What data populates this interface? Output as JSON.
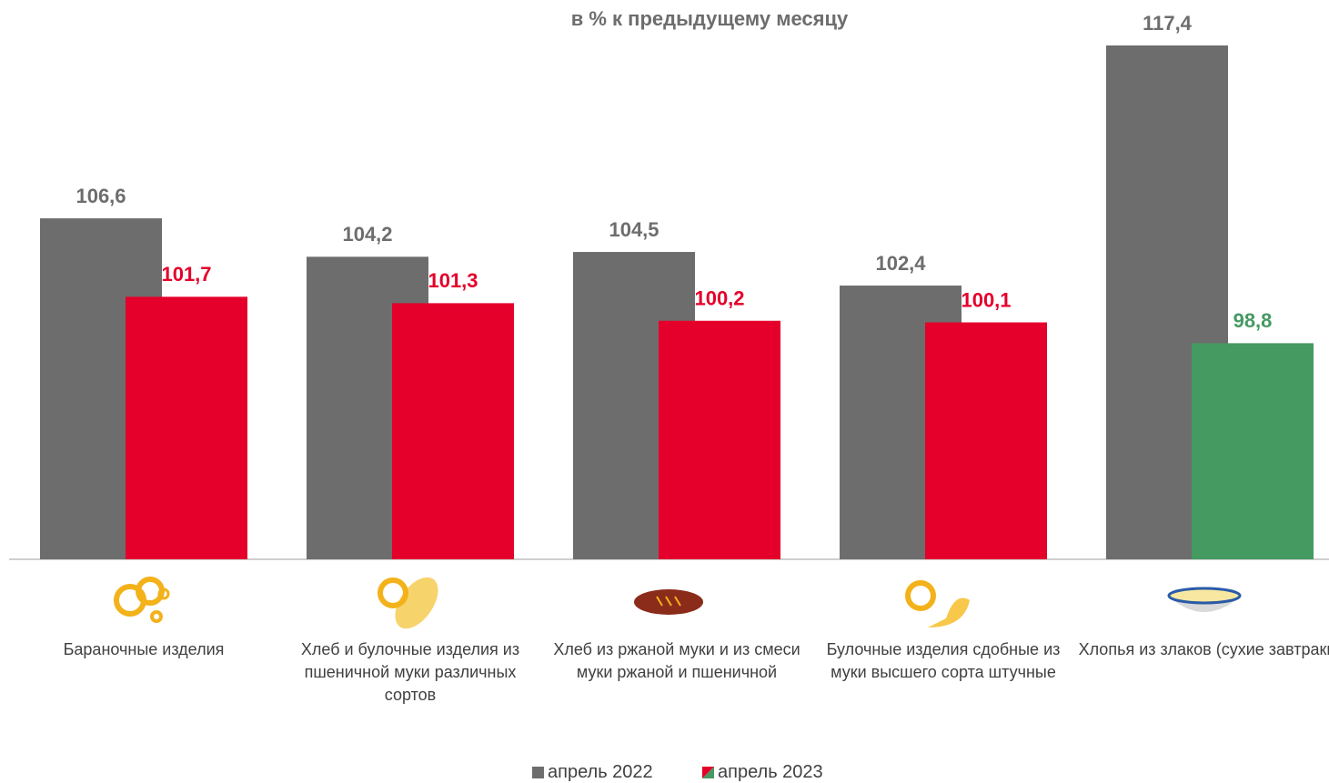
{
  "chart_data": {
    "type": "bar",
    "title": "в  %  к предыдущему месяцу",
    "categories": [
      "Бараночные изделия",
      "Хлеб и булочные изделия из пшеничной муки различных сортов",
      "Хлеб из ржаной муки и из смеси муки ржаной и пшеничной",
      "Булочные изделия сдобные из муки высшего сорта штучные",
      "Хлопья из злаков (сухие завтраки)"
    ],
    "series": [
      {
        "name": "апрель 2022",
        "color": "#6d6d6d",
        "label_color": "#6d6d6d",
        "values": [
          106.6,
          104.2,
          104.5,
          102.4,
          117.4
        ],
        "value_labels": [
          "106,6",
          "104,2",
          "104,5",
          "102,4",
          "117,4"
        ]
      },
      {
        "name": "апрель 2023",
        "color": "#e4002b",
        "colors": [
          "#e4002b",
          "#e4002b",
          "#e4002b",
          "#e4002b",
          "#459a62"
        ],
        "values": [
          101.7,
          101.3,
          100.2,
          100.1,
          98.8
        ],
        "value_labels": [
          "101,7",
          "101,3",
          "100,2",
          "100,1",
          "98,8"
        ]
      }
    ],
    "ylim": [
      85.3,
      117.4
    ]
  }
}
